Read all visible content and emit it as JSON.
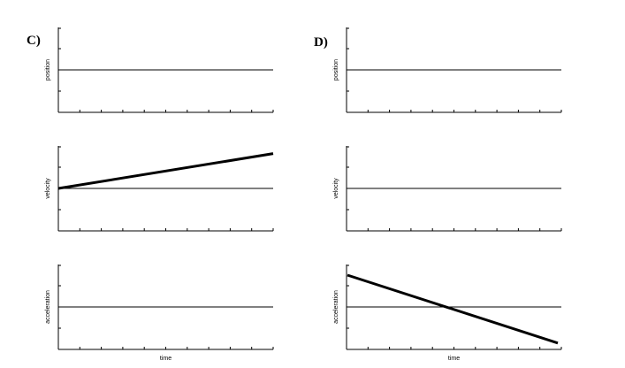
{
  "options": [
    {
      "label": "C)",
      "graphs": [
        {
          "ylabel": "position",
          "line": {
            "start": 0,
            "end": 0
          }
        },
        {
          "ylabel": "velocity",
          "line": {
            "start": 0,
            "end": 0.82
          }
        },
        {
          "ylabel": "acceleration",
          "line": {
            "start": 0,
            "end": 0
          }
        }
      ],
      "xlabel": "time"
    },
    {
      "label": "D)",
      "graphs": [
        {
          "ylabel": "position",
          "line": {
            "start": 0,
            "end": 0
          }
        },
        {
          "ylabel": "velocity",
          "line": {
            "start": 0,
            "end": 0
          }
        },
        {
          "ylabel": "acceleration",
          "line": {
            "start": 0.75,
            "end": -0.85
          }
        }
      ],
      "xlabel": "time"
    }
  ]
}
